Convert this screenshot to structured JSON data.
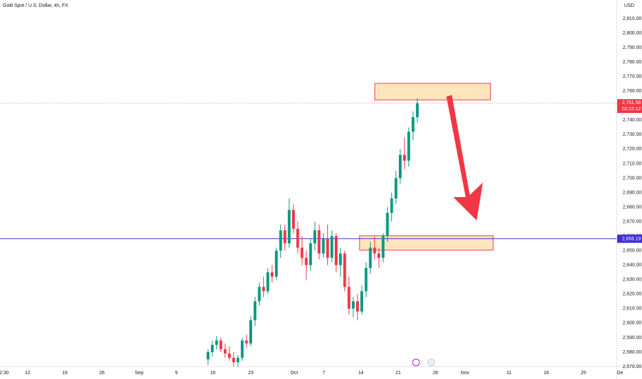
{
  "chart_data": {
    "type": "candlestick",
    "title": "Gold Spot / U.S. Dollar, 4h, FX",
    "currency": "USD",
    "up_color": "#089981",
    "down_color": "#f23645",
    "open": [
      2575,
      2580,
      2585,
      2588,
      2582,
      2579,
      2576,
      2573,
      2576,
      2588,
      2586,
      2602,
      2615,
      2625,
      2622,
      2635,
      2632,
      2650,
      2664,
      2655,
      2678,
      2665,
      2652,
      2645,
      2640,
      2655,
      2664,
      2648,
      2658,
      2645,
      2660,
      2640,
      2648,
      2625,
      2610,
      2615,
      2608,
      2622,
      2638,
      2652,
      2648,
      2645,
      2660,
      2676,
      2686,
      2700,
      2716,
      2712,
      2732,
      2742
    ],
    "high": [
      2582,
      2588,
      2591,
      2590,
      2586,
      2584,
      2580,
      2578,
      2590,
      2592,
      2605,
      2618,
      2628,
      2632,
      2638,
      2640,
      2652,
      2668,
      2668,
      2686,
      2682,
      2670,
      2660,
      2650,
      2658,
      2670,
      2668,
      2662,
      2668,
      2664,
      2662,
      2652,
      2650,
      2632,
      2618,
      2620,
      2626,
      2642,
      2656,
      2660,
      2652,
      2662,
      2680,
      2690,
      2705,
      2720,
      2728,
      2735,
      2746,
      2755
    ],
    "low": [
      2571,
      2577,
      2582,
      2580,
      2576,
      2574,
      2570,
      2570,
      2574,
      2583,
      2584,
      2598,
      2612,
      2618,
      2620,
      2628,
      2630,
      2645,
      2650,
      2652,
      2662,
      2648,
      2640,
      2630,
      2636,
      2650,
      2644,
      2645,
      2640,
      2642,
      2635,
      2632,
      2622,
      2606,
      2604,
      2602,
      2606,
      2618,
      2634,
      2644,
      2638,
      2642,
      2656,
      2670,
      2682,
      2696,
      2706,
      2708,
      2726,
      2738
    ],
    "close": [
      2580,
      2585,
      2588,
      2582,
      2579,
      2576,
      2573,
      2576,
      2588,
      2586,
      2602,
      2615,
      2625,
      2622,
      2635,
      2632,
      2650,
      2664,
      2655,
      2678,
      2665,
      2652,
      2645,
      2640,
      2655,
      2664,
      2648,
      2658,
      2645,
      2660,
      2640,
      2648,
      2625,
      2610,
      2615,
      2608,
      2622,
      2638,
      2652,
      2648,
      2645,
      2660,
      2676,
      2686,
      2700,
      2716,
      2712,
      2732,
      2742,
      2751.58
    ],
    "last_price": {
      "value": 2751.58,
      "label": "2,751.58"
    },
    "countdown": "02:22:12",
    "level": {
      "value": 2658.19,
      "label": "2,658.19"
    },
    "x_labels": [
      "2:30",
      "12",
      "19",
      "26",
      "Sep",
      "9",
      "16",
      "23",
      "Oct",
      "7",
      "14",
      "21",
      "28",
      "Nov",
      "11",
      "18",
      "25",
      "De"
    ],
    "ylim": [
      2570,
      2810
    ],
    "yticks": [
      {
        "value": 2570,
        "label": "2,570.00"
      },
      {
        "value": 2580,
        "label": "2,580.00"
      },
      {
        "value": 2590,
        "label": "2,590.00"
      },
      {
        "value": 2600,
        "label": "2,600.00"
      },
      {
        "value": 2610,
        "label": "2,610.00"
      },
      {
        "value": 2620,
        "label": "2,620.00"
      },
      {
        "value": 2630,
        "label": "2,630.00"
      },
      {
        "value": 2640,
        "label": "2,640.00"
      },
      {
        "value": 2650,
        "label": "2,650.00"
      },
      {
        "value": 2660,
        "label": "2,660.00"
      },
      {
        "value": 2670,
        "label": "2,670.00"
      },
      {
        "value": 2680,
        "label": "2,680.00"
      },
      {
        "value": 2690,
        "label": "2,690.00"
      },
      {
        "value": 2700,
        "label": "2,700.00"
      },
      {
        "value": 2710,
        "label": "2,710.00"
      },
      {
        "value": 2720,
        "label": "2,720.00"
      },
      {
        "value": 2730,
        "label": "2,730.00"
      },
      {
        "value": 2740,
        "label": "2,740.00"
      },
      {
        "value": 2750,
        "label": "2,750.00"
      },
      {
        "value": 2760,
        "label": "2,760.00"
      },
      {
        "value": 2770,
        "label": "2,770.00"
      },
      {
        "value": 2780,
        "label": "2,780.00"
      },
      {
        "value": 2790,
        "label": "2,790.00"
      },
      {
        "value": 2800,
        "label": "2,800.00"
      },
      {
        "value": 2810,
        "label": "2,810.00"
      }
    ]
  }
}
